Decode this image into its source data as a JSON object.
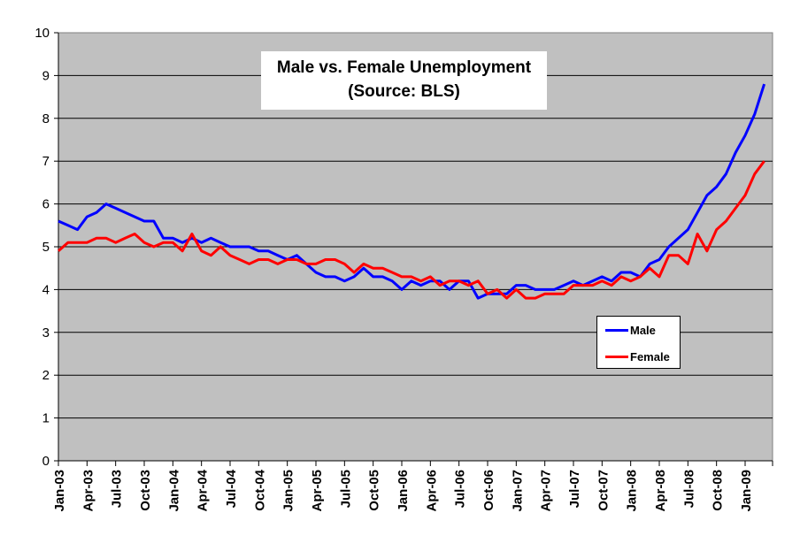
{
  "chart_data": {
    "type": "line",
    "title": "Male vs. Female Unemployment",
    "subtitle": "(Source: BLS)",
    "xlabel": "",
    "ylabel": "",
    "ylim": [
      0,
      10
    ],
    "yticks": [
      "0",
      "1",
      "2",
      "3",
      "4",
      "5",
      "6",
      "7",
      "8",
      "9",
      "10"
    ],
    "grid": true,
    "legend_position": "inside-right",
    "xtick_labels": [
      "Jan-03",
      "Apr-03",
      "Jul-03",
      "Oct-03",
      "Jan-04",
      "Apr-04",
      "Jul-04",
      "Oct-04",
      "Jan-05",
      "Apr-05",
      "Jul-05",
      "Oct-05",
      "Jan-06",
      "Apr-06",
      "Jul-06",
      "Oct-06",
      "Jan-07",
      "Apr-07",
      "Jul-07",
      "Oct-07",
      "Jan-08",
      "Apr-08",
      "Jul-08",
      "Oct-08",
      "Jan-09"
    ],
    "x": [
      "Jan-03",
      "Feb-03",
      "Mar-03",
      "Apr-03",
      "May-03",
      "Jun-03",
      "Jul-03",
      "Aug-03",
      "Sep-03",
      "Oct-03",
      "Nov-03",
      "Dec-03",
      "Jan-04",
      "Feb-04",
      "Mar-04",
      "Apr-04",
      "May-04",
      "Jun-04",
      "Jul-04",
      "Aug-04",
      "Sep-04",
      "Oct-04",
      "Nov-04",
      "Dec-04",
      "Jan-05",
      "Feb-05",
      "Mar-05",
      "Apr-05",
      "May-05",
      "Jun-05",
      "Jul-05",
      "Aug-05",
      "Sep-05",
      "Oct-05",
      "Nov-05",
      "Dec-05",
      "Jan-06",
      "Feb-06",
      "Mar-06",
      "Apr-06",
      "May-06",
      "Jun-06",
      "Jul-06",
      "Aug-06",
      "Sep-06",
      "Oct-06",
      "Nov-06",
      "Dec-06",
      "Jan-07",
      "Feb-07",
      "Mar-07",
      "Apr-07",
      "May-07",
      "Jun-07",
      "Jul-07",
      "Aug-07",
      "Sep-07",
      "Oct-07",
      "Nov-07",
      "Dec-07",
      "Jan-08",
      "Feb-08",
      "Mar-08",
      "Apr-08",
      "May-08",
      "Jun-08",
      "Jul-08",
      "Aug-08",
      "Sep-08",
      "Oct-08",
      "Nov-08",
      "Dec-08",
      "Jan-09",
      "Feb-09",
      "Mar-09"
    ],
    "series": [
      {
        "name": "Male",
        "color": "#0000ff",
        "values": [
          5.6,
          5.5,
          5.4,
          5.7,
          5.8,
          6.0,
          5.9,
          5.8,
          5.7,
          5.6,
          5.6,
          5.2,
          5.2,
          5.1,
          5.2,
          5.1,
          5.2,
          5.1,
          5.0,
          5.0,
          5.0,
          4.9,
          4.9,
          4.8,
          4.7,
          4.8,
          4.6,
          4.4,
          4.3,
          4.3,
          4.2,
          4.3,
          4.5,
          4.3,
          4.3,
          4.2,
          4.0,
          4.2,
          4.1,
          4.2,
          4.2,
          4.0,
          4.2,
          4.2,
          3.8,
          3.9,
          3.9,
          3.9,
          4.1,
          4.1,
          4.0,
          4.0,
          4.0,
          4.1,
          4.2,
          4.1,
          4.2,
          4.3,
          4.2,
          4.4,
          4.4,
          4.3,
          4.6,
          4.7,
          5.0,
          5.2,
          5.4,
          5.8,
          6.2,
          6.4,
          6.7,
          7.2,
          7.6,
          8.1,
          8.8
        ]
      },
      {
        "name": "Female",
        "color": "#ff0000",
        "values": [
          4.9,
          5.1,
          5.1,
          5.1,
          5.2,
          5.2,
          5.1,
          5.2,
          5.3,
          5.1,
          5.0,
          5.1,
          5.1,
          4.9,
          5.3,
          4.9,
          4.8,
          5.0,
          4.8,
          4.7,
          4.6,
          4.7,
          4.7,
          4.6,
          4.7,
          4.7,
          4.6,
          4.6,
          4.7,
          4.7,
          4.6,
          4.4,
          4.6,
          4.5,
          4.5,
          4.4,
          4.3,
          4.3,
          4.2,
          4.3,
          4.1,
          4.2,
          4.2,
          4.1,
          4.2,
          3.9,
          4.0,
          3.8,
          4.0,
          3.8,
          3.8,
          3.9,
          3.9,
          3.9,
          4.1,
          4.1,
          4.1,
          4.2,
          4.1,
          4.3,
          4.2,
          4.3,
          4.5,
          4.3,
          4.8,
          4.8,
          4.6,
          5.3,
          4.9,
          5.4,
          5.6,
          5.9,
          6.2,
          6.7,
          7.0
        ]
      }
    ]
  },
  "title": {
    "line1": "Male vs. Female Unemployment",
    "line2": "(Source: BLS)"
  },
  "legend": {
    "male_label": "Male",
    "female_label": "Female",
    "male_color": "#0000ff",
    "female_color": "#ff0000"
  },
  "colors": {
    "plot_background": "#c0c0c0",
    "gridline": "#000000"
  }
}
